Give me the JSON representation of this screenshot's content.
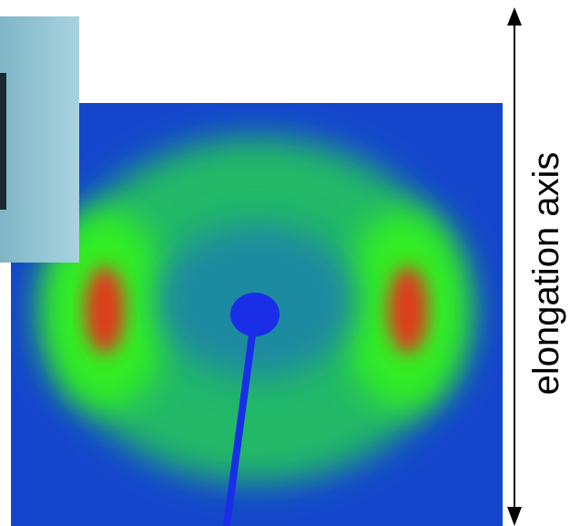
{
  "label": "elongation axis"
}
